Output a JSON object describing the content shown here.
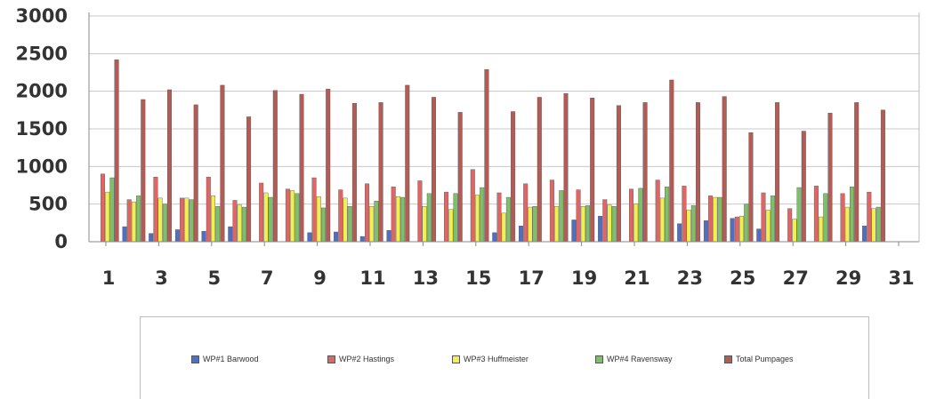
{
  "chart_data": {
    "type": "bar",
    "categories": [
      1,
      2,
      3,
      4,
      5,
      6,
      7,
      8,
      9,
      10,
      11,
      12,
      13,
      14,
      15,
      16,
      17,
      18,
      19,
      20,
      21,
      22,
      23,
      24,
      25,
      26,
      27,
      28,
      29,
      30
    ],
    "x_tick_labels": [
      "1",
      "3",
      "5",
      "7",
      "9",
      "11",
      "13",
      "15",
      "17",
      "19",
      "21",
      "23",
      "25",
      "27",
      "29",
      "31"
    ],
    "y_tick_labels": [
      "0",
      "500",
      "1000",
      "1500",
      "2000",
      "2500",
      "3000"
    ],
    "ylim": [
      0,
      3000
    ],
    "grid": true,
    "legend_position": "bottom",
    "series": [
      {
        "name": "WP#1 Barwood",
        "color": "#4f6fc0",
        "values": [
          0,
          200,
          110,
          160,
          140,
          200,
          0,
          0,
          120,
          130,
          70,
          150,
          0,
          0,
          0,
          120,
          210,
          0,
          290,
          340,
          0,
          0,
          240,
          280,
          310,
          170,
          0,
          0,
          0,
          210
        ]
      },
      {
        "name": "WP#2 Hastings",
        "color": "#e06666",
        "values": [
          900,
          560,
          860,
          580,
          860,
          550,
          780,
          700,
          850,
          690,
          770,
          730,
          810,
          660,
          960,
          650,
          770,
          820,
          690,
          560,
          700,
          820,
          740,
          610,
          330,
          650,
          440,
          740,
          640,
          660
        ]
      },
      {
        "name": "WP#3 Huffmeister",
        "color": "#f2f050",
        "values": [
          660,
          530,
          580,
          580,
          610,
          490,
          650,
          680,
          600,
          580,
          470,
          600,
          470,
          430,
          620,
          380,
          460,
          470,
          470,
          490,
          500,
          580,
          420,
          590,
          340,
          420,
          300,
          330,
          460,
          440
        ]
      },
      {
        "name": "WP#4 Ravensway",
        "color": "#7fbf6a",
        "values": [
          850,
          610,
          500,
          560,
          470,
          460,
          590,
          640,
          450,
          470,
          540,
          590,
          640,
          640,
          720,
          590,
          470,
          680,
          480,
          470,
          710,
          730,
          480,
          590,
          500,
          610,
          720,
          640,
          730,
          460
        ]
      },
      {
        "name": "Total Pumpages",
        "color": "#b35b55",
        "values": [
          2420,
          1890,
          2020,
          1820,
          2080,
          1660,
          2010,
          1960,
          2030,
          1840,
          1850,
          2080,
          1920,
          1720,
          2290,
          1730,
          1920,
          1970,
          1910,
          1810,
          1850,
          2150,
          1850,
          1930,
          1450,
          1850,
          1470,
          1710,
          1850,
          1750
        ]
      }
    ]
  }
}
